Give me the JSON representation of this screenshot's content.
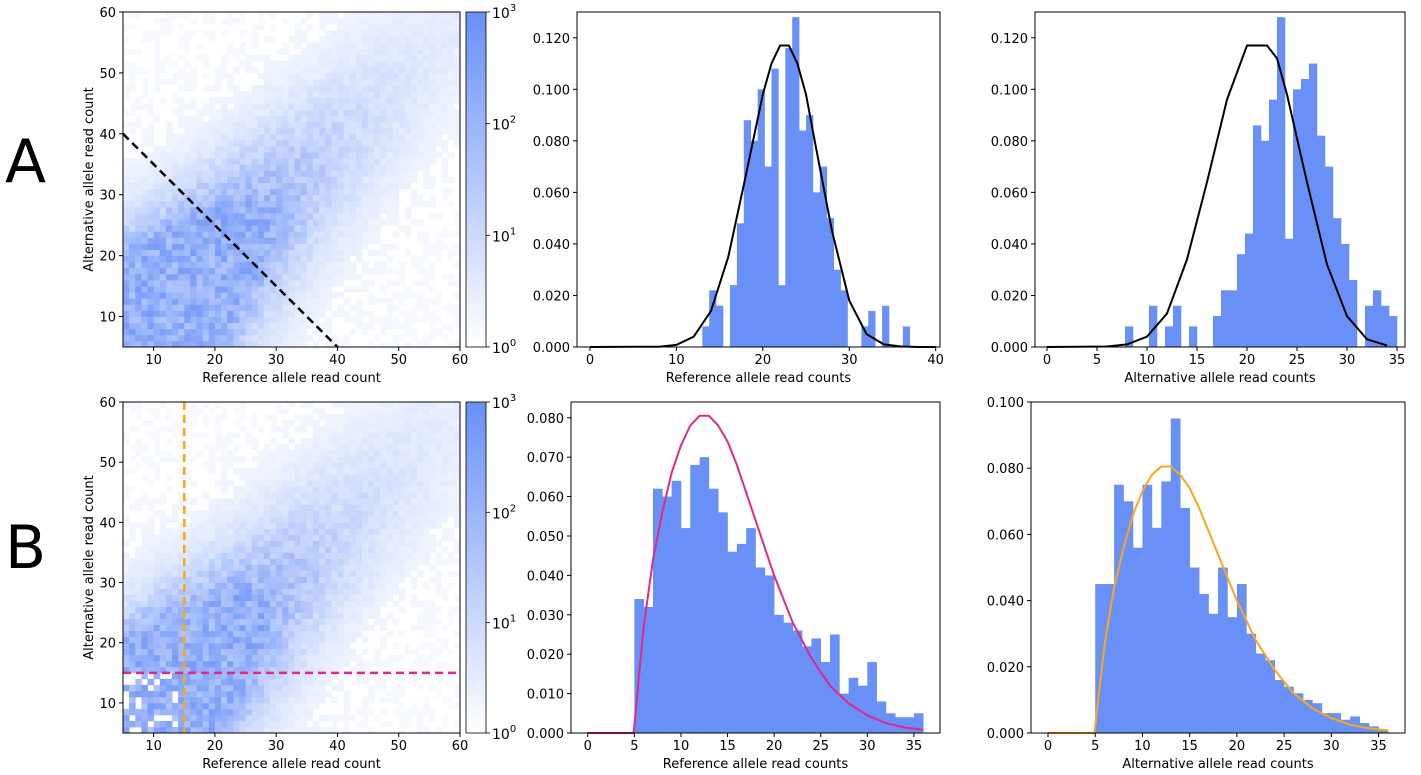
{
  "row_labels": [
    "A",
    "B"
  ],
  "colors": {
    "bar": "#6890f7",
    "heat_max": "#6890f7",
    "heat_min": "#ffffff",
    "fit_A": "#000000",
    "fit_B_ref": "#e0298a",
    "fit_B_alt": "#f9a61a",
    "cutoff_A": "#000000",
    "cutoff_B_h": "#e0298a",
    "cutoff_B_v": "#f9a61a"
  },
  "chart_data": [
    {
      "id": "A-heatmap",
      "type": "heatmap",
      "xlabel": "Reference allele read count",
      "ylabel": "Alternative allele read count",
      "xlim": [
        5,
        60
      ],
      "ylim": [
        5,
        60
      ],
      "xticks": [
        10,
        20,
        30,
        40,
        50,
        60
      ],
      "yticks": [
        10,
        20,
        30,
        40,
        50,
        60
      ],
      "color_scale": "log",
      "colorbar_ticks": [
        "10^0",
        "10^1",
        "10^2",
        "10^3"
      ],
      "cutoff_line": {
        "x": [
          5,
          40
        ],
        "y": [
          40,
          5
        ],
        "style": "dashed",
        "color": "#000000"
      },
      "density_center": [
        8,
        8
      ]
    },
    {
      "id": "A-ref-hist",
      "type": "bar",
      "xlabel": "Reference allele read counts",
      "xlim": [
        -1.5,
        40.5
      ],
      "ylim": [
        0,
        0.13
      ],
      "xticks": [
        0,
        10,
        20,
        30,
        40
      ],
      "yticks": [
        0.0,
        0.02,
        0.04,
        0.06,
        0.08,
        0.1,
        0.12
      ],
      "ytick_labels": [
        "0.000",
        "0.020",
        "0.040",
        "0.060",
        "0.080",
        "0.100",
        "0.120"
      ],
      "bin_start": 13,
      "bin_width": 0.8,
      "values": [
        0.008,
        0.022,
        0.016,
        0.0,
        0.024,
        0.048,
        0.088,
        0.08,
        0.1,
        0.07,
        0.108,
        0.024,
        0.116,
        0.128,
        0.084,
        0.09,
        0.06,
        0.07,
        0.05,
        0.03,
        0.022,
        0.0,
        0.0,
        0.008,
        0.014,
        0.0,
        0.016,
        0.0,
        0.0,
        0.008
      ],
      "fit_x": [
        0,
        8,
        10,
        12,
        14,
        16,
        18,
        20,
        21,
        22,
        23,
        24,
        25,
        26,
        28,
        30,
        32,
        34,
        36,
        38,
        40
      ],
      "fit_y": [
        0,
        0.0001,
        0.0008,
        0.004,
        0.014,
        0.035,
        0.066,
        0.098,
        0.11,
        0.117,
        0.117,
        0.11,
        0.098,
        0.08,
        0.045,
        0.018,
        0.005,
        0.001,
        0.0002,
        0,
        0
      ],
      "fit_color": "#000000"
    },
    {
      "id": "A-alt-hist",
      "type": "bar",
      "xlabel": "Alternative allele read counts",
      "xlim": [
        -1.2,
        35.8
      ],
      "ylim": [
        0,
        0.13
      ],
      "xticks": [
        0,
        5,
        10,
        15,
        20,
        25,
        30,
        35
      ],
      "yticks": [
        0.0,
        0.02,
        0.04,
        0.06,
        0.08,
        0.1,
        0.12
      ],
      "ytick_labels": [
        "0.000",
        "0.020",
        "0.040",
        "0.060",
        "0.080",
        "0.100",
        "0.120"
      ],
      "bin_start": 7.8,
      "bin_width": 0.8,
      "values": [
        0.008,
        0.0,
        0.0,
        0.016,
        0.0,
        0.008,
        0.016,
        0.0,
        0.008,
        0.0,
        0.0,
        0.012,
        0.022,
        0.022,
        0.036,
        0.044,
        0.086,
        0.08,
        0.096,
        0.128,
        0.042,
        0.1,
        0.104,
        0.11,
        0.082,
        0.07,
        0.05,
        0.04,
        0.026,
        0.0,
        0.016,
        0.022,
        0.016,
        0.012,
        0.0
      ],
      "fit_x": [
        0,
        6,
        8,
        10,
        12,
        14,
        16,
        18,
        20,
        21,
        22,
        23,
        24,
        26,
        28,
        30,
        32,
        34
      ],
      "fit_y": [
        0,
        0.0002,
        0.001,
        0.004,
        0.013,
        0.034,
        0.064,
        0.096,
        0.117,
        0.117,
        0.117,
        0.112,
        0.098,
        0.064,
        0.032,
        0.012,
        0.003,
        0.0006
      ],
      "fit_color": "#000000"
    },
    {
      "id": "B-heatmap",
      "type": "heatmap",
      "xlabel": "Reference allele read count",
      "ylabel": "Alternative allele read count",
      "xlim": [
        5,
        60
      ],
      "ylim": [
        5,
        60
      ],
      "xticks": [
        10,
        20,
        30,
        40,
        50,
        60
      ],
      "yticks": [
        10,
        20,
        30,
        40,
        50,
        60
      ],
      "color_scale": "log",
      "colorbar_ticks": [
        "10^0",
        "10^1",
        "10^2",
        "10^3"
      ],
      "cutoff_hline": {
        "y": 15,
        "style": "dashed",
        "color": "#e0298a"
      },
      "cutoff_vline": {
        "x": 15,
        "style": "dashed",
        "color": "#f9a61a"
      },
      "density_center": [
        8,
        8
      ]
    },
    {
      "id": "B-ref-hist",
      "type": "bar",
      "xlabel": "Reference allele read counts",
      "xlim": [
        -1.8,
        37.8
      ],
      "ylim": [
        0,
        0.084
      ],
      "xticks": [
        0,
        5,
        10,
        15,
        20,
        25,
        30,
        35
      ],
      "yticks": [
        0.0,
        0.01,
        0.02,
        0.03,
        0.04,
        0.05,
        0.06,
        0.07,
        0.08
      ],
      "ytick_labels": [
        "0.000",
        "0.010",
        "0.020",
        "0.030",
        "0.040",
        "0.050",
        "0.060",
        "0.070",
        "0.080"
      ],
      "bin_start": 5,
      "bin_width": 1.0,
      "values": [
        0.034,
        0.032,
        0.062,
        0.06,
        0.064,
        0.052,
        0.068,
        0.07,
        0.062,
        0.056,
        0.046,
        0.048,
        0.052,
        0.042,
        0.04,
        0.03,
        0.028,
        0.026,
        0.022,
        0.024,
        0.018,
        0.025,
        0.01,
        0.014,
        0.012,
        0.018,
        0.008,
        0.005,
        0.004,
        0.004,
        0.005
      ],
      "fit_x": [
        0,
        4.9,
        5,
        6,
        7,
        8,
        9,
        10,
        11,
        12,
        13,
        14,
        15,
        16,
        17,
        18,
        19,
        20,
        22,
        24,
        26,
        28,
        30,
        32,
        34,
        36
      ],
      "fit_y": [
        0,
        0,
        0.002,
        0.027,
        0.044,
        0.056,
        0.066,
        0.073,
        0.078,
        0.0805,
        0.0805,
        0.078,
        0.074,
        0.068,
        0.061,
        0.054,
        0.047,
        0.04,
        0.028,
        0.019,
        0.012,
        0.0075,
        0.0045,
        0.0025,
        0.0014,
        0.0008
      ],
      "fit_color": "#e0298a"
    },
    {
      "id": "B-alt-hist",
      "type": "bar",
      "xlabel": "Alternative allele read counts",
      "xlim": [
        -1.8,
        37.8
      ],
      "ylim": [
        0,
        0.1
      ],
      "xticks": [
        0,
        5,
        10,
        15,
        20,
        25,
        30,
        35
      ],
      "yticks": [
        0.0,
        0.02,
        0.04,
        0.06,
        0.08,
        0.1
      ],
      "ytick_labels": [
        "0.000",
        "0.020",
        "0.040",
        "0.060",
        "0.080",
        "0.100"
      ],
      "bin_start": 5,
      "bin_width": 1.0,
      "values": [
        0.045,
        0.045,
        0.075,
        0.07,
        0.056,
        0.075,
        0.062,
        0.076,
        0.095,
        0.068,
        0.05,
        0.042,
        0.036,
        0.05,
        0.035,
        0.045,
        0.03,
        0.024,
        0.022,
        0.016,
        0.014,
        0.012,
        0.01,
        0.009,
        0.006,
        0.006,
        0.004,
        0.005,
        0.003,
        0.002,
        0.001
      ],
      "fit_x": [
        0,
        4.9,
        5,
        6,
        7,
        8,
        9,
        10,
        11,
        12,
        13,
        14,
        15,
        16,
        17,
        18,
        19,
        20,
        22,
        24,
        26,
        28,
        30,
        32,
        34,
        36
      ],
      "fit_y": [
        0,
        0,
        0.002,
        0.027,
        0.044,
        0.056,
        0.066,
        0.073,
        0.078,
        0.0805,
        0.0805,
        0.078,
        0.074,
        0.068,
        0.061,
        0.054,
        0.047,
        0.04,
        0.028,
        0.019,
        0.012,
        0.0075,
        0.0045,
        0.0025,
        0.0014,
        0.0008
      ],
      "fit_color": "#f9a61a"
    }
  ]
}
